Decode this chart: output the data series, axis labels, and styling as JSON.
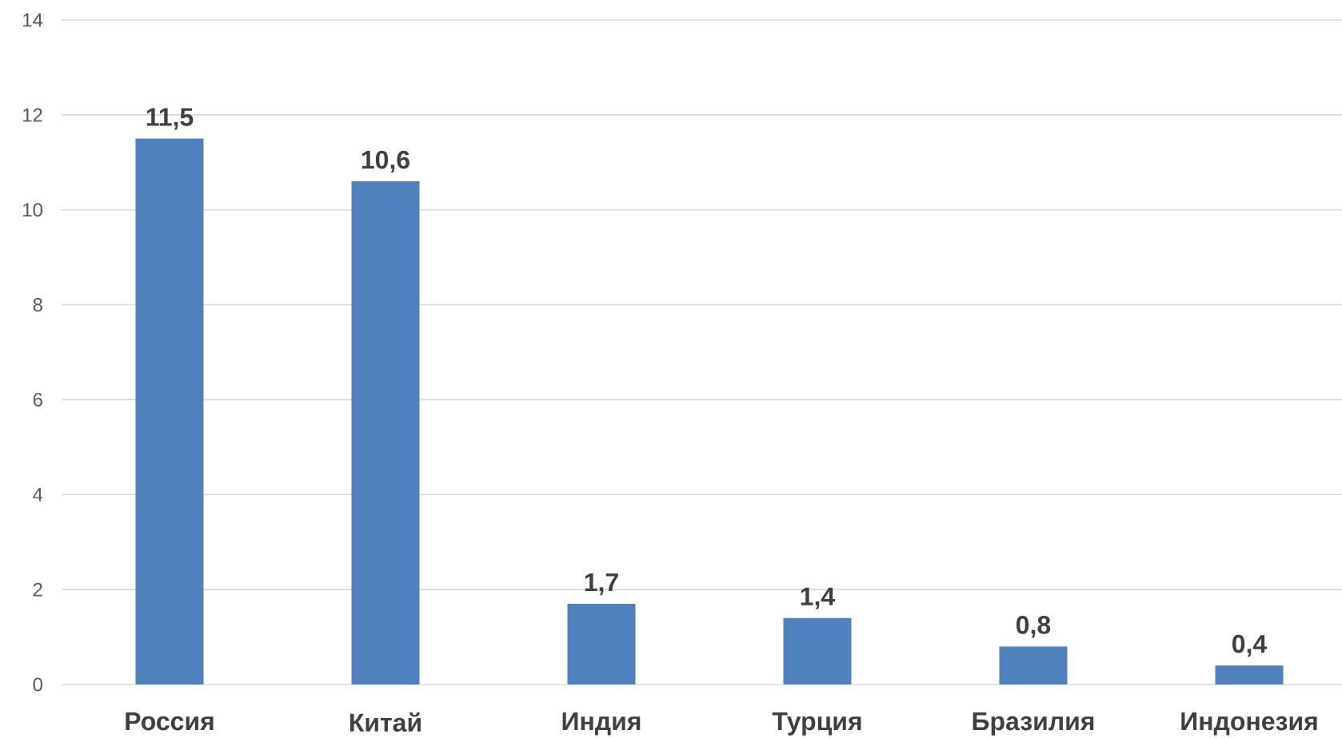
{
  "chart_data": {
    "type": "bar",
    "categories": [
      "Россия",
      "Китай",
      "Индия",
      "Турция",
      "Бразилия",
      "Индонезия"
    ],
    "values": [
      11.5,
      10.6,
      1.7,
      1.4,
      0.8,
      0.4
    ],
    "value_labels": [
      "11,5",
      "10,6",
      "1,7",
      "1,4",
      "0,8",
      "0,4"
    ],
    "color": "#4f81bd",
    "ylim": [
      0,
      14
    ],
    "yticks": [
      0,
      2,
      4,
      6,
      8,
      10,
      12,
      14
    ],
    "grid": "y"
  }
}
